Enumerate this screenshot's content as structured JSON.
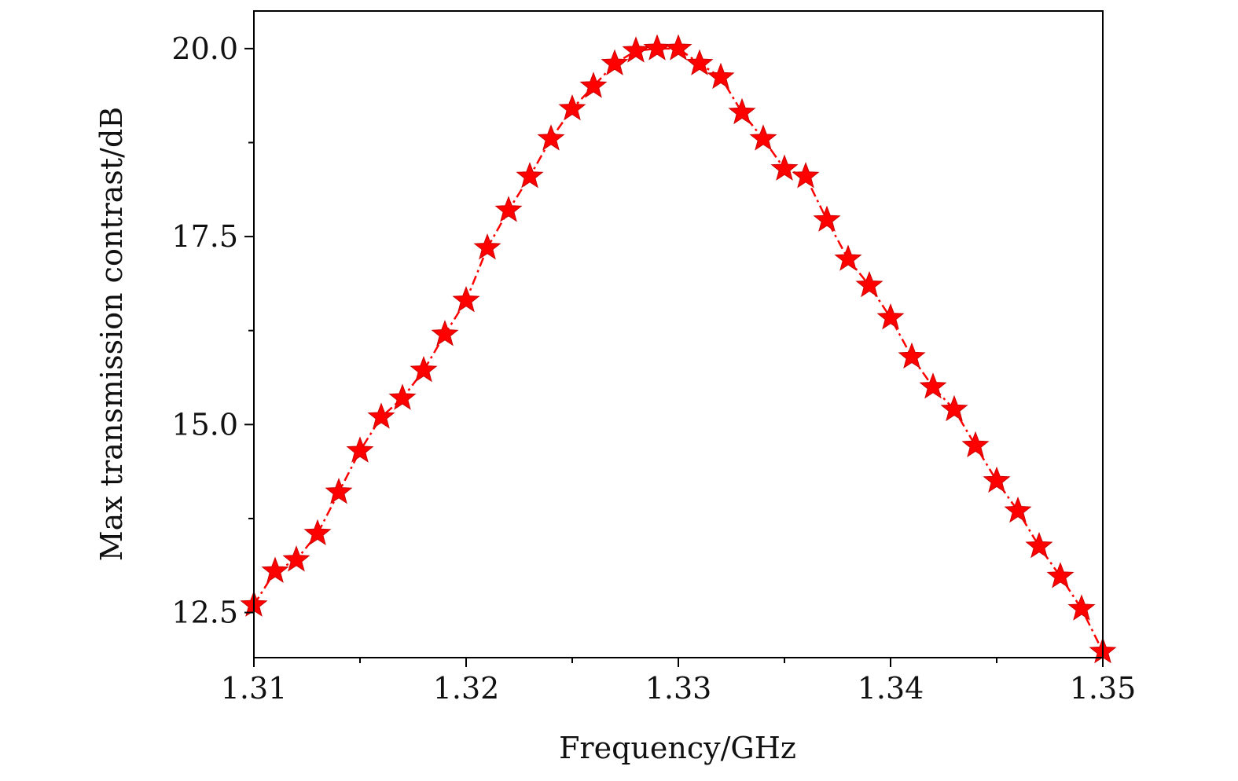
{
  "chart_data": {
    "type": "line",
    "title": "",
    "xlabel": "Frequency/GHz",
    "ylabel": "Max transmission contrast/dB",
    "xlim": [
      1.31,
      1.35
    ],
    "ylim": [
      11.9,
      20.5
    ],
    "xticks": [
      1.31,
      1.32,
      1.33,
      1.34,
      1.35
    ],
    "xtick_labels": [
      "1.31",
      "1.32",
      "1.33",
      "1.34",
      "1.35"
    ],
    "xminor_ticks": [
      1.315,
      1.325,
      1.335,
      1.345
    ],
    "yticks": [
      12.5,
      15.0,
      17.5,
      20.0
    ],
    "ytick_labels": [
      "12.5",
      "15.0",
      "17.5",
      "20.0"
    ],
    "yminor_ticks": [
      13.75,
      16.25,
      18.75
    ],
    "grid": false,
    "legend": "none",
    "color": "#ff0000",
    "marker": "star",
    "line_style": "dash-dot",
    "series": [
      {
        "x": [
          1.31,
          1.311,
          1.312,
          1.313,
          1.314,
          1.315,
          1.316,
          1.317,
          1.318,
          1.319,
          1.32,
          1.321,
          1.322,
          1.323,
          1.324,
          1.325,
          1.326,
          1.327,
          1.328,
          1.329,
          1.33,
          1.331,
          1.332,
          1.333,
          1.334,
          1.335,
          1.336,
          1.337,
          1.338,
          1.339,
          1.34,
          1.341,
          1.342,
          1.343,
          1.344,
          1.345,
          1.346,
          1.347,
          1.348,
          1.349,
          1.35
        ],
        "values": [
          12.6,
          13.05,
          13.2,
          13.55,
          14.1,
          14.65,
          15.1,
          15.35,
          15.72,
          16.2,
          16.65,
          17.35,
          17.85,
          18.3,
          18.8,
          19.2,
          19.5,
          19.8,
          19.97,
          20.0,
          20.0,
          19.8,
          19.62,
          19.15,
          18.8,
          18.4,
          18.3,
          17.72,
          17.2,
          16.85,
          16.42,
          15.9,
          15.5,
          15.2,
          14.72,
          14.25,
          13.85,
          13.38,
          12.98,
          12.55,
          11.98
        ]
      }
    ]
  }
}
